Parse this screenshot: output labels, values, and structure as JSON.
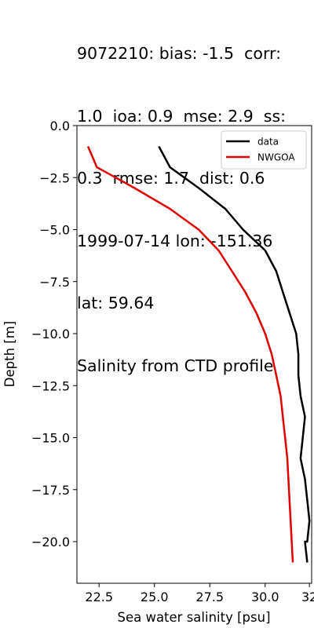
{
  "title_lines": [
    "9072210: bias: -1.5  corr:",
    "1.0  ioa: 0.9  mse: 2.9  ss:",
    "0.3  rmse: 1.7  dist: 0.6",
    "1999-07-14 lon: -151.36",
    "lat: 59.64",
    "Salinity from CTD profile"
  ],
  "chart_data": {
    "type": "line",
    "title": "9072210: bias: -1.5  corr: 1.0  ioa: 0.9  mse: 2.9  ss: 0.3  rmse: 1.7  dist: 0.6 1999-07-14 lon: -151.36 lat: 59.64 Salinity from CTD profile",
    "xlabel": "Sea water salinity [psu]",
    "ylabel": "Depth [m]",
    "xlim": [
      21.5,
      32.1
    ],
    "ylim": [
      -22.0,
      0.0
    ],
    "xticks": [
      22.5,
      25.0,
      27.5,
      30.0,
      32.0
    ],
    "xtick_labels": [
      "22.5",
      "25.0",
      "27.5",
      "30.0",
      "32"
    ],
    "yticks": [
      0.0,
      -2.5,
      -5.0,
      -7.5,
      -10.0,
      -12.5,
      -15.0,
      -17.5,
      -20.0
    ],
    "ytick_labels": [
      "0.0",
      "−2.5",
      "−5.0",
      "−7.5",
      "−10.0",
      "−12.5",
      "−15.0",
      "−17.5",
      "−20.0"
    ],
    "grid": false,
    "legend_position": "top-right",
    "series": [
      {
        "name": "data",
        "color": "#000000",
        "x": [
          25.2,
          25.7,
          27.0,
          28.2,
          29.0,
          30.0,
          30.5,
          30.8,
          31.1,
          31.4,
          31.5,
          31.5,
          31.6,
          31.8,
          31.7,
          31.6,
          31.8,
          31.9,
          32.0,
          31.9,
          31.8,
          31.9
        ],
        "y": [
          -1,
          -2,
          -3,
          -4,
          -5,
          -6,
          -7,
          -8,
          -9,
          -10,
          -11,
          -12,
          -13,
          -14,
          -15,
          -16,
          -17,
          -18,
          -19,
          -20,
          -20,
          -21
        ]
      },
      {
        "name": "NWGOA",
        "color": "#e00000",
        "x": [
          22.0,
          22.4,
          24.1,
          25.7,
          27.0,
          27.9,
          28.5,
          29.1,
          29.6,
          30.0,
          30.3,
          30.5,
          30.7,
          30.8,
          30.9,
          31.0,
          31.05,
          31.1,
          31.15,
          31.2,
          31.25
        ],
        "y": [
          -1,
          -2,
          -3,
          -4,
          -5,
          -6,
          -7,
          -8,
          -9,
          -10,
          -11,
          -12,
          -13,
          -14,
          -15,
          -16,
          -17,
          -18,
          -19,
          -20,
          -21
        ]
      }
    ]
  }
}
